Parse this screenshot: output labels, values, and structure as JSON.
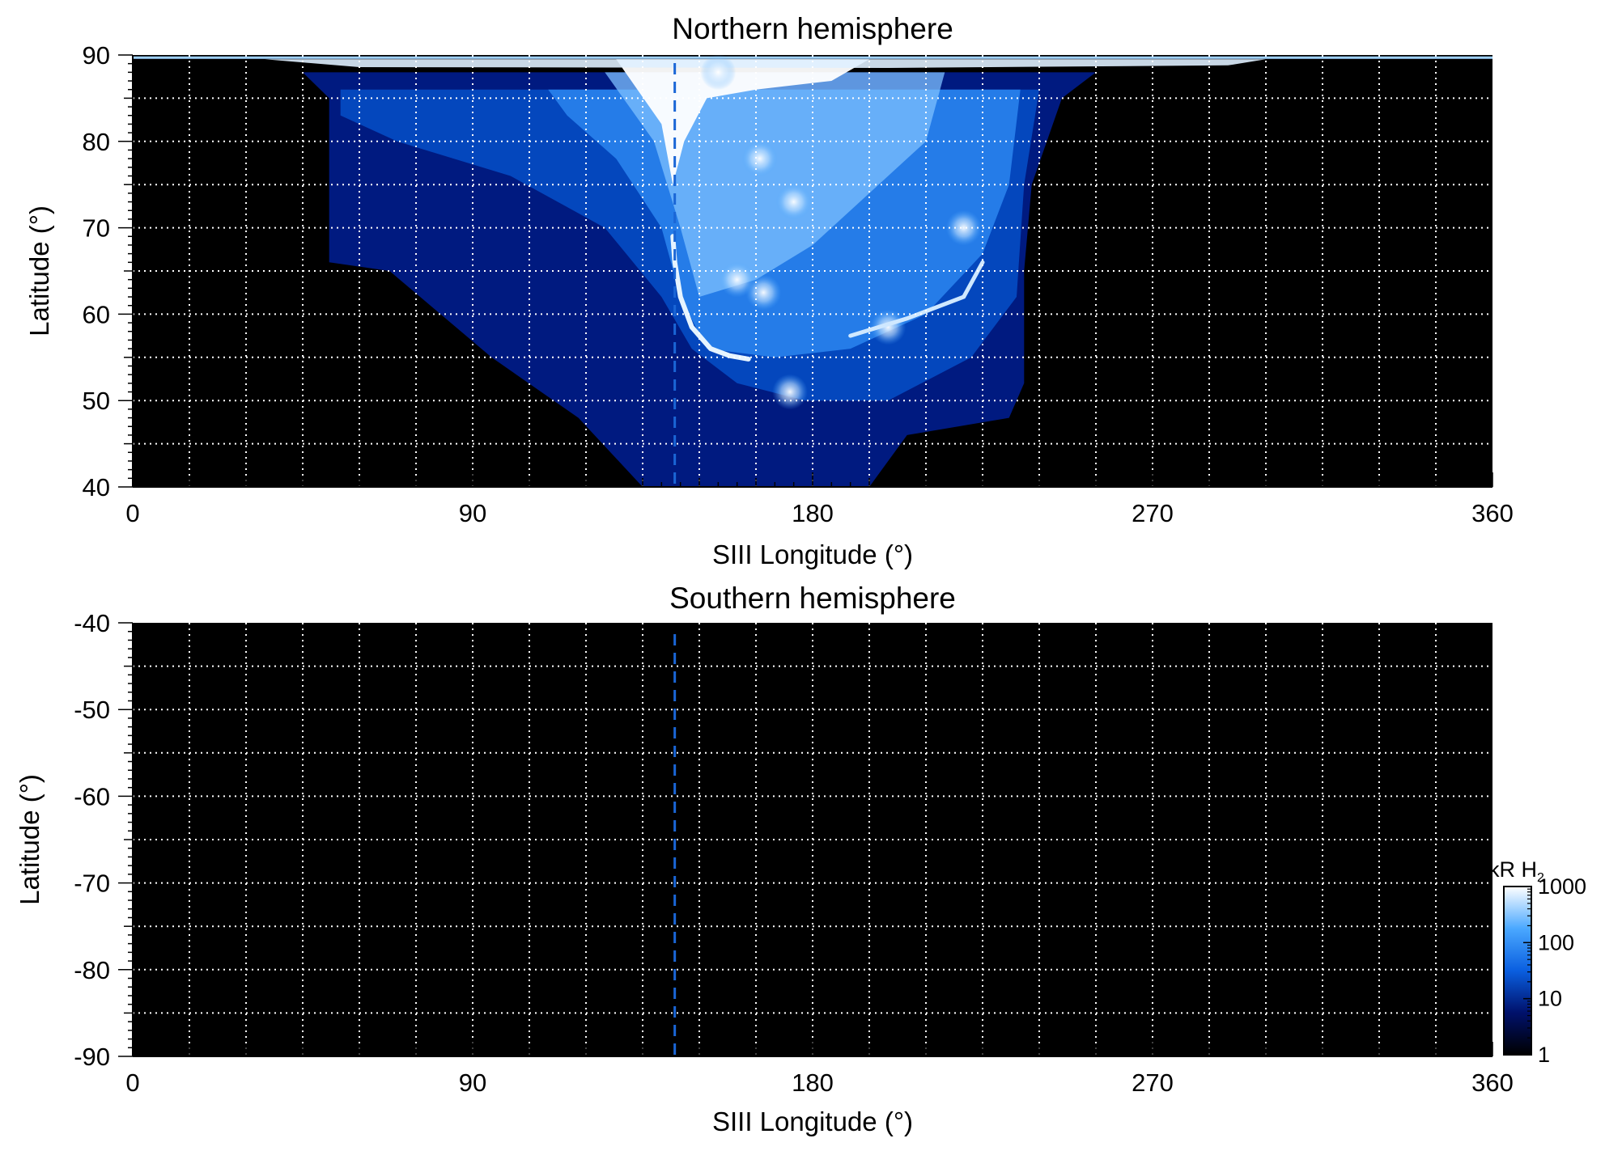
{
  "chart_data": [
    {
      "type": "heatmap",
      "title": "Northern hemisphere",
      "xlabel": "SIII Longitude (°)",
      "ylabel": "Latitude (°)",
      "xlim": [
        0,
        360
      ],
      "ylim": [
        40,
        90
      ],
      "xticks": [
        0,
        90,
        180,
        270,
        360
      ],
      "xtick_labels": [
        "0",
        "90",
        "180",
        "270",
        "360"
      ],
      "yticks": [
        40,
        50,
        60,
        70,
        80,
        90
      ],
      "ytick_labels": [
        "40",
        "50",
        "60",
        "70",
        "80",
        "90"
      ],
      "grid": true,
      "grid_x_step": 15,
      "grid_y_step": 5,
      "reference_longitude": 143.5,
      "main_oval_points": [
        {
          "lon": 143,
          "lat": 69
        },
        {
          "lon": 143.5,
          "lat": 66
        },
        {
          "lon": 145,
          "lat": 62
        },
        {
          "lon": 148,
          "lat": 58.5
        },
        {
          "lon": 153,
          "lat": 56
        },
        {
          "lon": 158,
          "lat": 55.2
        },
        {
          "lon": 163,
          "lat": 54.8
        }
      ],
      "emission_bright_spots": [
        {
          "lon": 167,
          "lat": 62.5
        },
        {
          "lon": 160,
          "lat": 64
        },
        {
          "lon": 175,
          "lat": 73
        },
        {
          "lon": 166,
          "lat": 78
        },
        {
          "lon": 220,
          "lat": 70
        },
        {
          "lon": 200,
          "lat": 58.5
        },
        {
          "lon": 174,
          "lat": 51
        },
        {
          "lon": 155,
          "lat": 88
        }
      ]
    },
    {
      "type": "heatmap",
      "title": "Southern hemisphere",
      "xlabel": "SIII Longitude (°)",
      "ylabel": "Latitude (°)",
      "xlim": [
        0,
        360
      ],
      "ylim": [
        -90,
        -40
      ],
      "xticks": [
        0,
        90,
        180,
        270,
        360
      ],
      "xtick_labels": [
        "0",
        "90",
        "180",
        "270",
        "360"
      ],
      "yticks": [
        -40,
        -50,
        -60,
        -70,
        -80,
        -90
      ],
      "ytick_labels": [
        "-40",
        "-50",
        "-60",
        "-70",
        "-80",
        "-90"
      ],
      "grid": true,
      "grid_x_step": 15,
      "grid_y_step": 5,
      "reference_longitude": 143.5
    }
  ],
  "colorbar": {
    "label": "kR H",
    "subscript": "2",
    "scale": "log",
    "range": [
      1,
      1000
    ],
    "ticks": [
      1,
      10,
      100,
      1000
    ],
    "tick_labels": [
      "1",
      "10",
      "100",
      "1000"
    ],
    "colors": [
      "#000000",
      "#00116b",
      "#0a5fe0",
      "#4aa8ff",
      "#ffffff"
    ]
  },
  "colors": {
    "background": "#000000",
    "grid": "#ffffff",
    "reference_line": "#1a66d6",
    "oval": "#e6f4ff"
  }
}
